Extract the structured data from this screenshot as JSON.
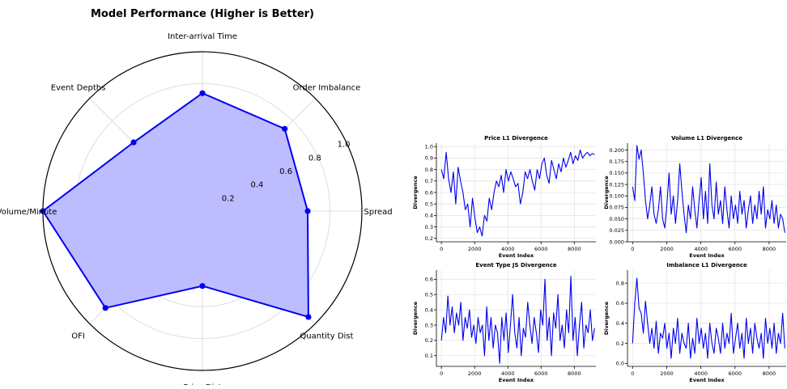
{
  "chart_data": [
    {
      "type": "radar",
      "title": "Model Performance (Higher is Better)",
      "categories": [
        "Spread",
        "Order Imbalance",
        "Inter-arrival Time",
        "Event Depths",
        "Volume/Minute",
        "OFI",
        "Price Dist",
        "Quantity Dist"
      ],
      "values": [
        0.66,
        0.73,
        0.74,
        0.61,
        1.0,
        0.86,
        0.47,
        0.94
      ],
      "rlim": [
        0,
        1.0
      ],
      "rticks": [
        0.2,
        0.4,
        0.6,
        0.8,
        1.0
      ],
      "rtick_labels": [
        "0.2",
        "0.4",
        "0.6",
        "0.8",
        "1.0"
      ],
      "grid": true,
      "colors": {
        "line": "#0000ee",
        "fill": "#b8b8ff"
      }
    },
    {
      "type": "line",
      "title": "Price L1 Divergence",
      "xlabel": "Event Index",
      "ylabel": "Divergence",
      "xlim": [
        -300,
        9300
      ],
      "ylim": [
        0.17,
        1.03
      ],
      "xticks": [
        0,
        2000,
        4000,
        6000,
        8000
      ],
      "yticks": [
        0.2,
        0.3,
        0.4,
        0.5,
        0.6,
        0.7,
        0.8,
        0.9,
        1.0
      ],
      "ytick_labels": [
        "0.2",
        "0.3",
        "0.4",
        "0.5",
        "0.6",
        "0.7",
        "0.8",
        "0.9",
        "1.0"
      ],
      "grid": true,
      "series": [
        {
          "x_step": 50,
          "values": [
            0.8,
            0.72,
            0.95,
            0.72,
            0.6,
            0.78,
            0.5,
            0.82,
            0.7,
            0.6,
            0.45,
            0.5,
            0.3,
            0.55,
            0.38,
            0.25,
            0.3,
            0.22,
            0.4,
            0.35,
            0.55,
            0.45,
            0.6,
            0.7,
            0.65,
            0.75,
            0.6,
            0.8,
            0.7,
            0.78,
            0.72,
            0.65,
            0.68,
            0.5,
            0.6,
            0.78,
            0.72,
            0.8,
            0.7,
            0.62,
            0.8,
            0.72,
            0.85,
            0.9,
            0.75,
            0.68,
            0.88,
            0.8,
            0.72,
            0.85,
            0.78,
            0.9,
            0.82,
            0.88,
            0.95,
            0.85,
            0.92,
            0.88,
            0.97,
            0.9,
            0.93,
            0.95,
            0.92,
            0.94,
            0.93
          ]
        }
      ]
    },
    {
      "type": "line",
      "title": "Volume L1 Divergence",
      "xlabel": "Event Index",
      "ylabel": "Divergence",
      "xlim": [
        -300,
        9000
      ],
      "ylim": [
        0,
        0.215
      ],
      "xticks": [
        0,
        2000,
        4000,
        6000,
        8000
      ],
      "yticks": [
        0,
        0.025,
        0.05,
        0.075,
        0.1,
        0.125,
        0.15,
        0.175,
        0.2
      ],
      "ytick_labels": [
        "0.000",
        "0.025",
        "0.050",
        "0.075",
        "0.100",
        "0.125",
        "0.150",
        "0.175",
        "0.200"
      ],
      "grid": true,
      "series": [
        {
          "x_step": 50,
          "values": [
            0.12,
            0.09,
            0.21,
            0.18,
            0.2,
            0.15,
            0.09,
            0.05,
            0.08,
            0.12,
            0.06,
            0.04,
            0.07,
            0.12,
            0.05,
            0.03,
            0.08,
            0.15,
            0.06,
            0.1,
            0.04,
            0.09,
            0.17,
            0.11,
            0.06,
            0.02,
            0.08,
            0.05,
            0.12,
            0.07,
            0.03,
            0.09,
            0.14,
            0.05,
            0.11,
            0.04,
            0.17,
            0.08,
            0.05,
            0.13,
            0.06,
            0.09,
            0.04,
            0.12,
            0.07,
            0.03,
            0.1,
            0.05,
            0.08,
            0.04,
            0.11,
            0.06,
            0.09,
            0.03,
            0.07,
            0.1,
            0.04,
            0.08,
            0.05,
            0.11,
            0.06,
            0.12,
            0.03,
            0.07,
            0.05,
            0.09,
            0.04,
            0.08,
            0.03,
            0.06,
            0.05,
            0.02
          ]
        }
      ]
    },
    {
      "type": "line",
      "title": "Event Type JS Divergence",
      "xlabel": "Event Index",
      "ylabel": "Divergence",
      "xlim": [
        -300,
        9300
      ],
      "ylim": [
        0.03,
        0.66
      ],
      "xticks": [
        0,
        2000,
        4000,
        6000,
        8000
      ],
      "yticks": [
        0.1,
        0.2,
        0.3,
        0.4,
        0.5,
        0.6
      ],
      "ytick_labels": [
        "0.1",
        "0.2",
        "0.3",
        "0.4",
        "0.5",
        "0.6"
      ],
      "grid": true,
      "series": [
        {
          "x_step": 50,
          "values": [
            0.2,
            0.35,
            0.25,
            0.49,
            0.3,
            0.42,
            0.25,
            0.38,
            0.3,
            0.45,
            0.2,
            0.35,
            0.28,
            0.4,
            0.22,
            0.3,
            0.18,
            0.35,
            0.25,
            0.3,
            0.1,
            0.42,
            0.2,
            0.35,
            0.15,
            0.3,
            0.25,
            0.05,
            0.35,
            0.2,
            0.38,
            0.12,
            0.3,
            0.5,
            0.25,
            0.15,
            0.35,
            0.1,
            0.28,
            0.22,
            0.45,
            0.3,
            0.18,
            0.35,
            0.25,
            0.12,
            0.4,
            0.3,
            0.6,
            0.2,
            0.35,
            0.1,
            0.38,
            0.28,
            0.5,
            0.2,
            0.3,
            0.15,
            0.4,
            0.25,
            0.62,
            0.2,
            0.35,
            0.1,
            0.3,
            0.45,
            0.15,
            0.3,
            0.25,
            0.4,
            0.2,
            0.28
          ]
        }
      ]
    },
    {
      "type": "line",
      "title": "Imbalance L1 Divergence",
      "xlabel": "Event Index",
      "ylabel": "Divergence",
      "xlim": [
        -300,
        9000
      ],
      "ylim": [
        -0.03,
        0.93
      ],
      "xticks": [
        0,
        2000,
        4000,
        6000,
        8000
      ],
      "yticks": [
        0,
        0.2,
        0.4,
        0.6,
        0.8
      ],
      "ytick_labels": [
        "0.0",
        "0.2",
        "0.4",
        "0.6",
        "0.8"
      ],
      "grid": true,
      "series": [
        {
          "x_step": 50,
          "values": [
            0.2,
            0.6,
            0.85,
            0.55,
            0.5,
            0.3,
            0.62,
            0.4,
            0.2,
            0.35,
            0.15,
            0.42,
            0.1,
            0.3,
            0.25,
            0.4,
            0.15,
            0.3,
            0.05,
            0.35,
            0.2,
            0.45,
            0.1,
            0.3,
            0.2,
            0.15,
            0.4,
            0.05,
            0.25,
            0.1,
            0.45,
            0.2,
            0.35,
            0.15,
            0.3,
            0.05,
            0.4,
            0.2,
            0.1,
            0.35,
            0.25,
            0.1,
            0.4,
            0.15,
            0.3,
            0.2,
            0.5,
            0.1,
            0.25,
            0.4,
            0.15,
            0.3,
            0.05,
            0.45,
            0.2,
            0.35,
            0.1,
            0.4,
            0.25,
            0.15,
            0.3,
            0.05,
            0.45,
            0.2,
            0.35,
            0.15,
            0.4,
            0.1,
            0.3,
            0.2,
            0.5,
            0.15
          ]
        }
      ]
    }
  ]
}
